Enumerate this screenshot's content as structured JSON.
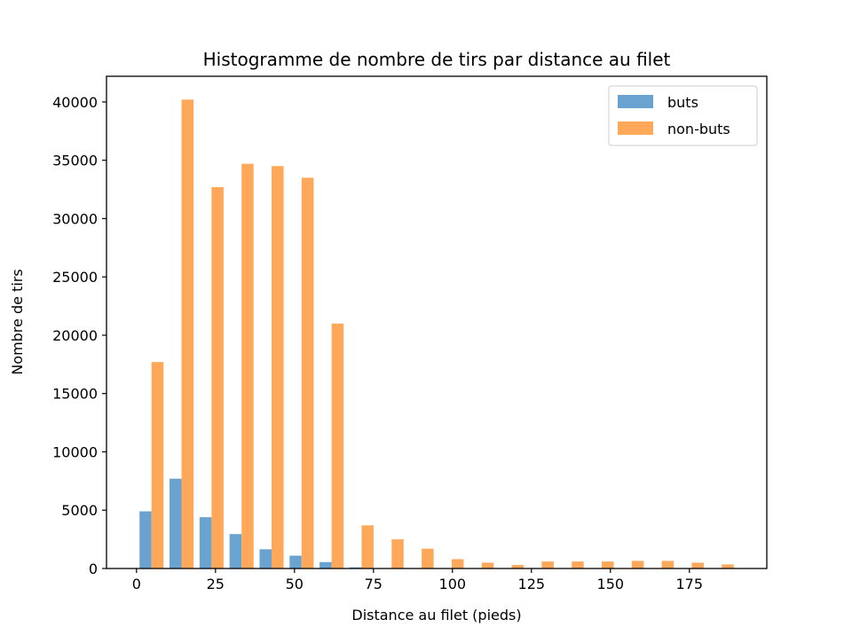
{
  "chart_data": {
    "type": "bar",
    "title": "Histogramme de nombre de tirs par distance au filet",
    "xlabel": "Distance au filet (pieds)",
    "ylabel": "Nombre de tirs",
    "xlim": [
      -9.5,
      199.5
    ],
    "ylim": [
      0,
      42200
    ],
    "x_ticks": [
      0,
      25,
      50,
      75,
      100,
      125,
      150,
      175
    ],
    "y_ticks": [
      0,
      5000,
      10000,
      15000,
      20000,
      25000,
      30000,
      35000,
      40000
    ],
    "bin_edges": [
      0,
      9.5,
      19,
      28.5,
      38,
      47.5,
      57,
      66.5,
      76,
      85.5,
      95,
      104.5,
      114,
      123.5,
      133,
      142.5,
      152,
      161.5,
      171,
      180.5,
      190
    ],
    "grid": false,
    "legend_position": "top-right",
    "series": [
      {
        "name": "buts",
        "color": "#6aa3cf",
        "values": [
          4900,
          7700,
          4400,
          2950,
          1650,
          1100,
          550,
          100,
          30,
          20,
          20,
          15,
          10,
          10,
          10,
          10,
          10,
          10,
          10,
          5
        ]
      },
      {
        "name": "non-buts",
        "color": "#ffa85a",
        "values": [
          17700,
          40200,
          32700,
          34700,
          34500,
          33500,
          21000,
          3700,
          2500,
          1700,
          800,
          500,
          300,
          600,
          600,
          600,
          650,
          650,
          500,
          350
        ]
      }
    ]
  }
}
